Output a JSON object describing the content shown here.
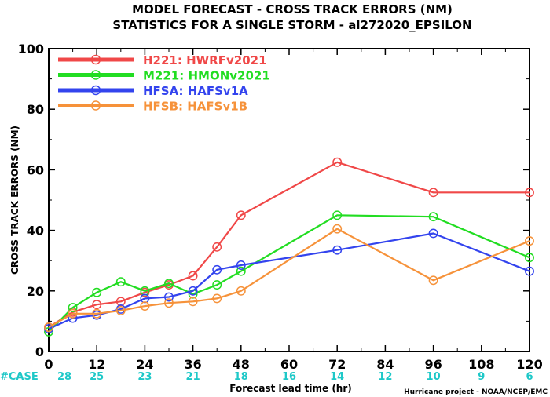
{
  "chart_data": {
    "type": "line",
    "title": "MODEL FORECAST - CROSS TRACK ERRORS (NM)",
    "subtitle": "STATISTICS FOR A SINGLE STORM - al272020_EPSILON",
    "xlabel": "Forecast lead time (hr)",
    "ylabel": "CROSS TRACK ERRORS (NM)",
    "xlim": [
      0,
      120
    ],
    "ylim": [
      0,
      100
    ],
    "x_ticks": [
      0,
      12,
      24,
      36,
      48,
      60,
      72,
      84,
      96,
      108,
      120
    ],
    "y_ticks": [
      0,
      20,
      40,
      60,
      80,
      100
    ],
    "x": [
      0,
      6,
      12,
      18,
      24,
      30,
      36,
      42,
      48,
      72,
      96,
      120
    ],
    "series": [
      {
        "name": "H221: HWRFv2021",
        "color": "#f04848",
        "values": [
          8,
          13,
          15.5,
          16.5,
          19.5,
          22,
          25,
          34.5,
          45,
          62.5,
          52.5,
          52.5
        ]
      },
      {
        "name": "M221: HMONv2021",
        "color": "#22dd22",
        "values": [
          6.5,
          14.5,
          19.5,
          23,
          20,
          22.5,
          19,
          22,
          26.5,
          45,
          44.5,
          31
        ]
      },
      {
        "name": "HFSA: HAFSv1A",
        "color": "#3344ee",
        "values": [
          7.5,
          11,
          12,
          14,
          17.5,
          18,
          20,
          27,
          28.5,
          33.5,
          39,
          26.5
        ]
      },
      {
        "name": "HFSB: HAFSv1B",
        "color": "#f6923a",
        "values": [
          8,
          12.5,
          12.5,
          13.5,
          15,
          16,
          16.5,
          17.5,
          20,
          40.5,
          23.5,
          36.5
        ]
      }
    ],
    "case_label": "#CASE",
    "case_ticks": [
      0,
      12,
      24,
      36,
      48,
      60,
      72,
      84,
      96,
      108,
      120
    ],
    "case_counts": [
      "28",
      "25",
      "23",
      "21",
      "18",
      "16",
      "14",
      "12",
      "10",
      "9",
      "6"
    ],
    "credit": "Hurricane project - NOAA/NCEP/EMC",
    "grid": false,
    "legend_position": "top-left"
  }
}
